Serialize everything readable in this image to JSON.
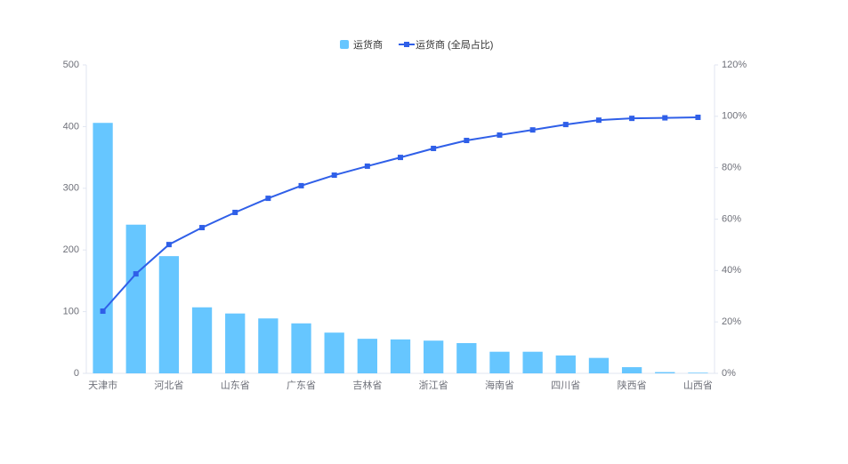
{
  "chart_data": {
    "type": "pareto",
    "categories": [
      "天津市",
      null,
      "河北省",
      null,
      "山东省",
      null,
      "广东省",
      null,
      "吉林省",
      null,
      "浙江省",
      null,
      "海南省",
      null,
      "四川省",
      null,
      "陕西省",
      null,
      "山西省"
    ],
    "series": [
      {
        "name": "运货商",
        "type": "bar",
        "color": "#66c6ff",
        "values": [
          406,
          241,
          190,
          107,
          97,
          89,
          81,
          66,
          56,
          55,
          53,
          49,
          35,
          35,
          29,
          25,
          10,
          2,
          1
        ]
      },
      {
        "name": "运货商 (全局占比)",
        "type": "line",
        "axis": "y2",
        "color": "#2f5fe8",
        "values": [
          24.2,
          38.7,
          50.1,
          56.7,
          62.6,
          68.1,
          73.0,
          77.1,
          80.6,
          84.0,
          87.5,
          90.6,
          92.7,
          94.7,
          96.8,
          98.5,
          99.2,
          99.4,
          99.6
        ]
      }
    ],
    "ylim": [
      0,
      500
    ],
    "yticks": [
      0,
      100,
      200,
      300,
      400,
      500
    ],
    "y2lim": [
      0,
      120
    ],
    "y2ticks": [
      {
        "value": 0,
        "label": "0%"
      },
      {
        "value": 20,
        "label": "20%"
      },
      {
        "value": 40,
        "label": "40%"
      },
      {
        "value": 60,
        "label": "60%"
      },
      {
        "value": 80,
        "label": "80%"
      },
      {
        "value": 100,
        "label": "100%"
      },
      {
        "value": 120,
        "label": "120%"
      }
    ],
    "legend": "top"
  }
}
